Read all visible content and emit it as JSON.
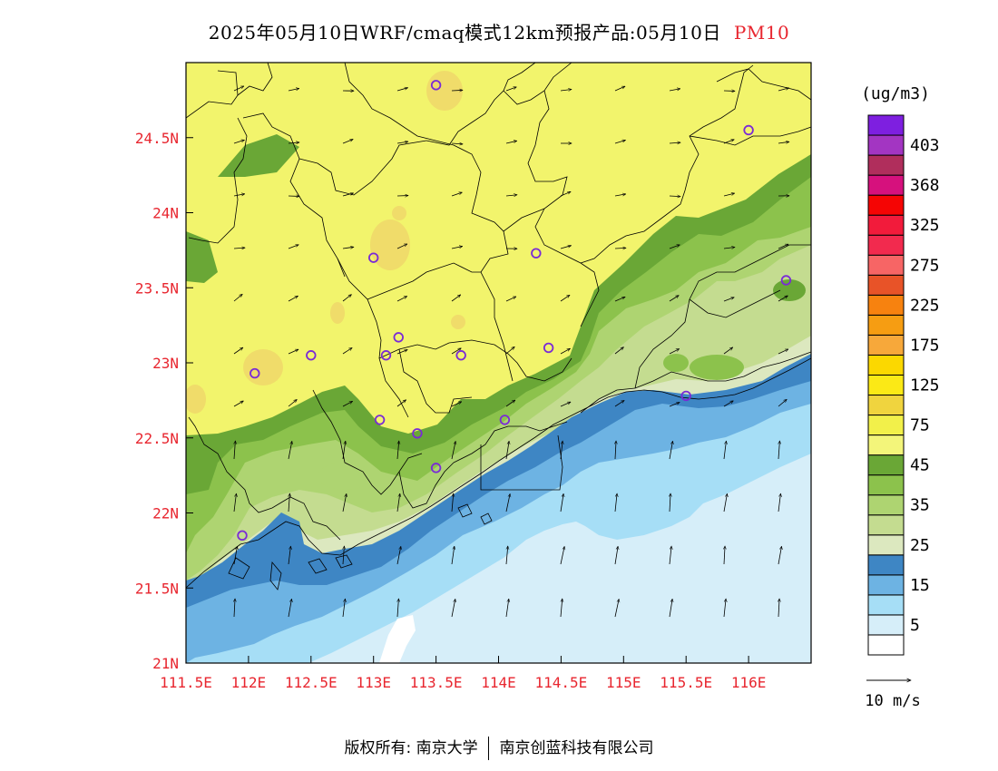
{
  "title": {
    "text": "2025年05月10日WRF/cmaq模式12km预报产品:05月10日",
    "species": "PM10",
    "species_color": "#e8262f"
  },
  "map": {
    "lon_range": [
      111.5,
      116.5
    ],
    "lat_range": [
      21.0,
      25.0
    ],
    "lon_ticks": [
      "111.5E",
      "112E",
      "112.5E",
      "113E",
      "113.5E",
      "114E",
      "114.5E",
      "115E",
      "115.5E",
      "116E"
    ],
    "lat_ticks": [
      "21N",
      "21.5N",
      "22N",
      "22.5N",
      "23N",
      "23.5N",
      "24N",
      "24.5N"
    ],
    "tick_label_color": "#e8262f",
    "station_color": "#7a2ad6",
    "stations": [
      {
        "lon": 113.5,
        "lat": 24.85
      },
      {
        "lon": 116.0,
        "lat": 24.55
      },
      {
        "lon": 113.0,
        "lat": 23.7
      },
      {
        "lon": 114.3,
        "lat": 23.73
      },
      {
        "lon": 116.3,
        "lat": 23.55
      },
      {
        "lon": 113.2,
        "lat": 23.17
      },
      {
        "lon": 113.1,
        "lat": 23.05
      },
      {
        "lon": 113.7,
        "lat": 23.05
      },
      {
        "lon": 114.4,
        "lat": 23.1
      },
      {
        "lon": 112.5,
        "lat": 23.05
      },
      {
        "lon": 112.05,
        "lat": 22.93
      },
      {
        "lon": 115.5,
        "lat": 22.78
      },
      {
        "lon": 113.05,
        "lat": 22.62
      },
      {
        "lon": 114.05,
        "lat": 22.62
      },
      {
        "lon": 113.35,
        "lat": 22.53
      },
      {
        "lon": 113.5,
        "lat": 22.3
      },
      {
        "lon": 111.95,
        "lat": 21.85
      }
    ]
  },
  "wind": {
    "reference_label": "10 m/s"
  },
  "colorbar": {
    "unit_label": "(ug/m3)",
    "colors": [
      "#ffffff",
      "#d6eef9",
      "#a6def6",
      "#6db3e3",
      "#3e86c4",
      "#dce8bf",
      "#c4dc90",
      "#aed471",
      "#8cc24c",
      "#6aa736",
      "#f3f57a",
      "#f2f04a",
      "#f0d43e",
      "#fbe916",
      "#fbd800",
      "#f7a83a",
      "#f69d12",
      "#f7820f",
      "#e85328",
      "#f76565",
      "#f22a4e",
      "#f21b3b",
      "#f50504",
      "#d6117d",
      "#b02e5c",
      "#a335c2",
      "#7e1fe0"
    ],
    "labels": [
      {
        "index": 1,
        "text": "5"
      },
      {
        "index": 3,
        "text": "15"
      },
      {
        "index": 5,
        "text": "25"
      },
      {
        "index": 7,
        "text": "35"
      },
      {
        "index": 9,
        "text": "45"
      },
      {
        "index": 11,
        "text": "75"
      },
      {
        "index": 13,
        "text": "125"
      },
      {
        "index": 15,
        "text": "175"
      },
      {
        "index": 17,
        "text": "225"
      },
      {
        "index": 19,
        "text": "275"
      },
      {
        "index": 21,
        "text": "325"
      },
      {
        "index": 23,
        "text": "368"
      },
      {
        "index": 25,
        "text": "403"
      }
    ]
  },
  "copyright": {
    "prefix": "版权所有:",
    "org1": "南京大学",
    "org2": "南京创蓝科技有限公司"
  }
}
